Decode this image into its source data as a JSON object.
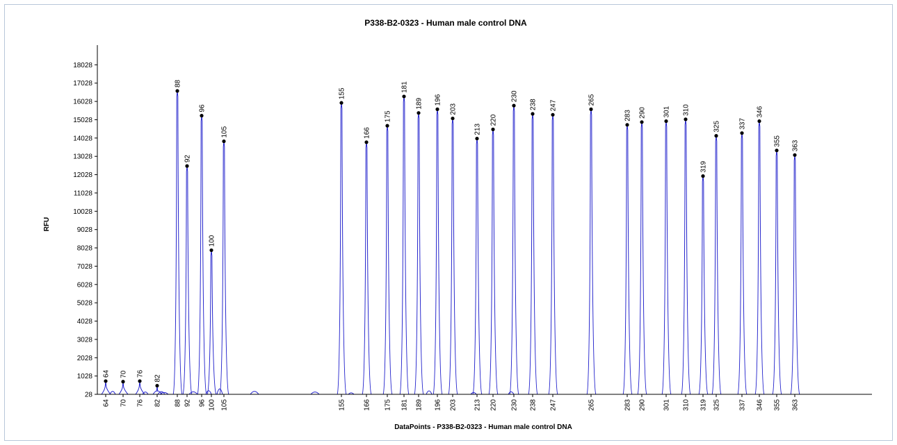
{
  "chart_data": {
    "type": "line",
    "title": "P338-B2-0323 - Human male control DNA",
    "xlabel": "DataPoints - P338-B2-0323 - Human male control DNA",
    "ylabel": "RFU",
    "ylim": [
      28,
      19028
    ],
    "yticks": [
      "28",
      "1028",
      "2028",
      "3028",
      "4028",
      "5028",
      "6028",
      "7028",
      "8028",
      "9028",
      "10028",
      "11028",
      "12028",
      "13028",
      "14028",
      "15028",
      "16028",
      "17028",
      "18028"
    ],
    "series_color": "#2222cc",
    "marker_color": "#000000",
    "grid": false,
    "peaks": [
      {
        "label": "64",
        "height": 750
      },
      {
        "label": "70",
        "height": 720
      },
      {
        "label": "76",
        "height": 750
      },
      {
        "label": "82",
        "height": 500
      },
      {
        "label": "88",
        "height": 16600
      },
      {
        "label": "92",
        "height": 12500
      },
      {
        "label": "96",
        "height": 15250
      },
      {
        "label": "100",
        "height": 7900
      },
      {
        "label": "105",
        "height": 13850
      },
      {
        "label": "155",
        "height": 15950
      },
      {
        "label": "166",
        "height": 13800
      },
      {
        "label": "175",
        "height": 14700
      },
      {
        "label": "181",
        "height": 16300
      },
      {
        "label": "189",
        "height": 15400
      },
      {
        "label": "196",
        "height": 15600
      },
      {
        "label": "203",
        "height": 15100
      },
      {
        "label": "213",
        "height": 14000
      },
      {
        "label": "220",
        "height": 14500
      },
      {
        "label": "230",
        "height": 15800
      },
      {
        "label": "238",
        "height": 15350
      },
      {
        "label": "247",
        "height": 15300
      },
      {
        "label": "265",
        "height": 15600
      },
      {
        "label": "283",
        "height": 14750
      },
      {
        "label": "290",
        "height": 14900
      },
      {
        "label": "301",
        "height": 14950
      },
      {
        "label": "310",
        "height": 15050
      },
      {
        "label": "319",
        "height": 11950
      },
      {
        "label": "325",
        "height": 14150
      },
      {
        "label": "337",
        "height": 14300
      },
      {
        "label": "346",
        "height": 14950
      },
      {
        "label": "355",
        "height": 13350
      },
      {
        "label": "363",
        "height": 13100
      }
    ]
  }
}
